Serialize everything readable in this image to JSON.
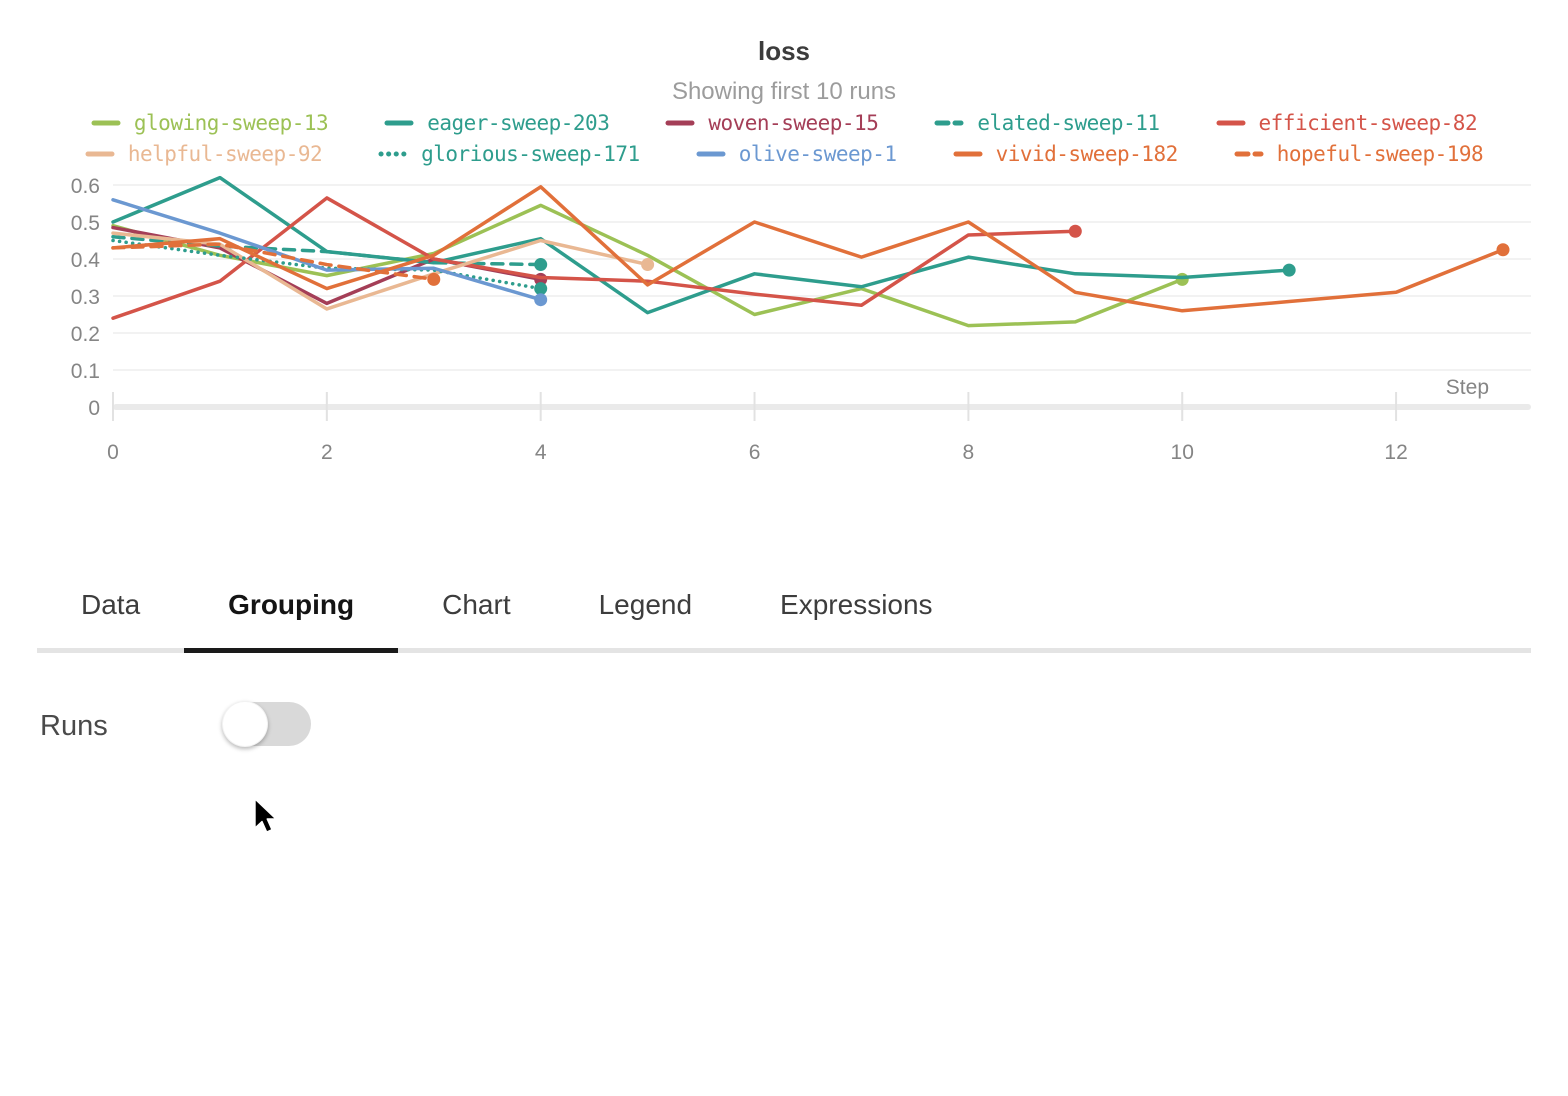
{
  "chart_data": {
    "type": "line",
    "title": "loss",
    "subtitle": "Showing first 10 runs",
    "xlabel": "Step",
    "ylabel": "",
    "xlim": [
      0,
      13
    ],
    "ylim": [
      0,
      0.62
    ],
    "xticks": [
      0,
      2,
      4,
      6,
      8,
      10,
      12
    ],
    "yticks": [
      0,
      0.1,
      0.2,
      0.3,
      0.4,
      0.5,
      0.6
    ],
    "grid": "horizontal",
    "legend_position": "top",
    "series": [
      {
        "name": "glowing-sweep-13",
        "color": "#9cc155",
        "dash": "solid",
        "x": [
          0,
          1,
          2,
          3,
          4,
          5,
          6,
          7,
          8,
          9,
          10
        ],
        "y": [
          0.49,
          0.41,
          0.355,
          0.415,
          0.545,
          0.41,
          0.25,
          0.32,
          0.22,
          0.23,
          0.345
        ]
      },
      {
        "name": "eager-sweep-203",
        "color": "#2e9d8d",
        "dash": "solid",
        "x": [
          0,
          1,
          2,
          3,
          4,
          5,
          6,
          7,
          8,
          9,
          10,
          11
        ],
        "y": [
          0.5,
          0.62,
          0.42,
          0.39,
          0.455,
          0.255,
          0.36,
          0.325,
          0.405,
          0.36,
          0.35,
          0.37
        ]
      },
      {
        "name": "woven-sweep-15",
        "color": "#a43e57",
        "dash": "solid",
        "x": [
          0,
          1,
          2,
          3,
          4
        ],
        "y": [
          0.485,
          0.43,
          0.28,
          0.4,
          0.345
        ]
      },
      {
        "name": "elated-sweep-11",
        "color": "#2e9d8d",
        "dash": "dashed",
        "x": [
          0,
          1,
          2,
          3,
          4
        ],
        "y": [
          0.46,
          0.435,
          0.42,
          0.39,
          0.385
        ]
      },
      {
        "name": "efficient-sweep-82",
        "color": "#d45449",
        "dash": "solid",
        "x": [
          0,
          1,
          2,
          3,
          4,
          5,
          6,
          7,
          8,
          9
        ],
        "y": [
          0.24,
          0.34,
          0.565,
          0.4,
          0.35,
          0.34,
          0.305,
          0.275,
          0.465,
          0.475
        ]
      },
      {
        "name": "helpful-sweep-92",
        "color": "#e9b893",
        "dash": "solid",
        "x": [
          0,
          1,
          2,
          3,
          4,
          5
        ],
        "y": [
          0.47,
          0.44,
          0.265,
          0.36,
          0.45,
          0.385
        ]
      },
      {
        "name": "glorious-sweep-171",
        "color": "#2e9d8d",
        "dash": "dotted",
        "x": [
          0,
          1,
          2,
          3,
          4
        ],
        "y": [
          0.45,
          0.41,
          0.375,
          0.37,
          0.32
        ]
      },
      {
        "name": "olive-sweep-1",
        "color": "#6b98d1",
        "dash": "solid",
        "x": [
          0,
          1,
          2,
          3,
          4
        ],
        "y": [
          0.56,
          0.47,
          0.37,
          0.375,
          0.29
        ]
      },
      {
        "name": "vivid-sweep-182",
        "color": "#e1703a",
        "dash": "solid",
        "x": [
          0,
          1,
          2,
          3,
          4,
          5,
          6,
          7,
          8,
          9,
          10,
          11,
          12,
          13
        ],
        "y": [
          0.43,
          0.455,
          0.32,
          0.41,
          0.595,
          0.33,
          0.5,
          0.405,
          0.5,
          0.31,
          0.26,
          0.285,
          0.31,
          0.425
        ]
      },
      {
        "name": "hopeful-sweep-198",
        "color": "#e1703a",
        "dash": "dashed",
        "x": [
          0,
          1,
          2,
          3
        ],
        "y": [
          0.43,
          0.44,
          0.385,
          0.345
        ]
      }
    ]
  },
  "tabs": {
    "items": [
      {
        "label": "Data",
        "active": false
      },
      {
        "label": "Grouping",
        "active": true
      },
      {
        "label": "Chart",
        "active": false
      },
      {
        "label": "Legend",
        "active": false
      },
      {
        "label": "Expressions",
        "active": false
      }
    ]
  },
  "grouping": {
    "runs_label": "Runs",
    "runs_toggle": "off"
  }
}
